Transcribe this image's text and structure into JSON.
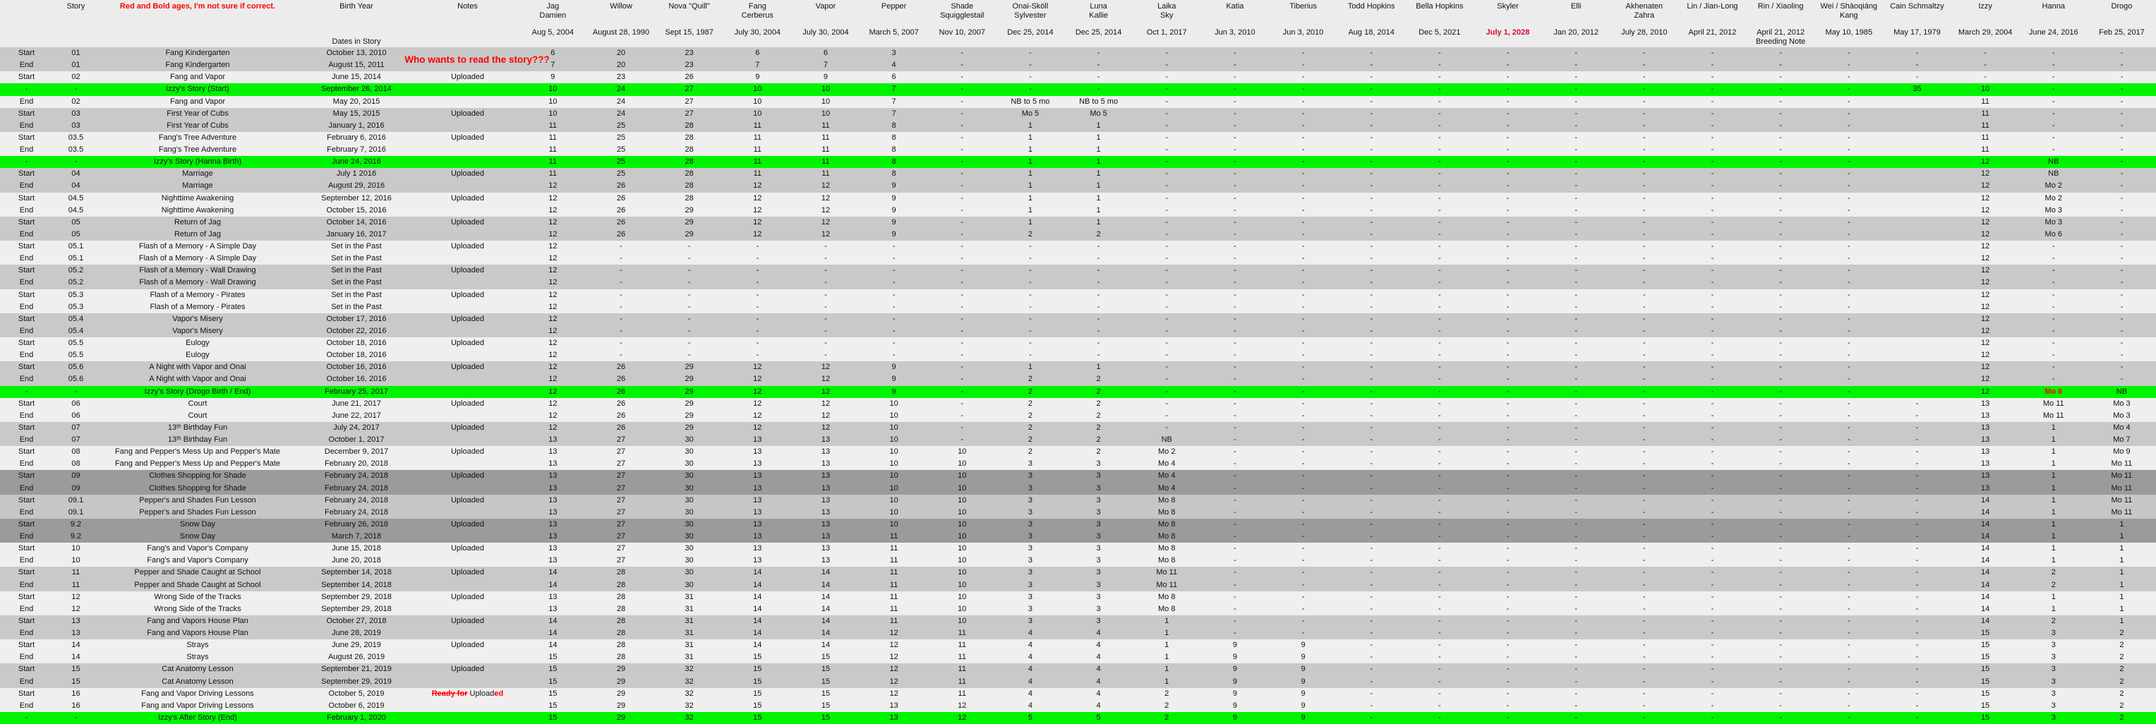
{
  "colors": {
    "green_highlight": "#00f400",
    "gray_row": "#c9c9c9",
    "dark_row": "#9b9b9b",
    "mid_row": "#c6c6c6",
    "white_row": "#efefef",
    "background": "#ececec",
    "red_text": "#ff0000",
    "skyler_red": "#d40b2c"
  },
  "header": {
    "story_label": "Story",
    "red_note": "Red and Bold ages, I'm not sure if correct.",
    "birth_year_label": "Birth Year",
    "dates_in_story_label": "Dates in Story",
    "notes_label": "Notes",
    "characters": [
      {
        "name": "Jag\nDamien",
        "birth": "Aug 5, 2004"
      },
      {
        "name": "Willow",
        "birth": "August 28, 1990"
      },
      {
        "name": "Nova \"Quill\"",
        "birth": "Sept 15, 1987"
      },
      {
        "name": "Fang\nCerberus",
        "birth": "July 30, 2004"
      },
      {
        "name": "Vapor",
        "birth": "July 30, 2004"
      },
      {
        "name": "Pepper",
        "birth": "March 5, 2007"
      },
      {
        "name": "Shade\nSquigglestail",
        "birth": "Nov 10, 2007"
      },
      {
        "name": "Onai-Sköll\nSylvester",
        "birth": "Dec 25, 2014"
      },
      {
        "name": "Luna\nKallie",
        "birth": "Dec 25, 2014"
      },
      {
        "name": "Laika\nSky",
        "birth": "Oct 1, 2017"
      },
      {
        "name": "Katia",
        "birth": "Jun 3, 2010"
      },
      {
        "name": "Tiberius",
        "birth": "Jun 3, 2010"
      },
      {
        "name": "Todd Hopkins",
        "birth": "Aug 18, 2014"
      },
      {
        "name": "Bella Hopkins",
        "birth": "Dec 5, 2021"
      },
      {
        "name": "Skyler",
        "birth": "July 1, 2028",
        "red": true
      },
      {
        "name": "Elli",
        "birth": "Jan 20, 2012"
      },
      {
        "name": "Akhenaten\nZahra",
        "birth": "July 28, 2010"
      },
      {
        "name": "Lin / Jian-Long",
        "birth": "April 21, 2012"
      },
      {
        "name": "Rin / Xiaoling",
        "birth": "April 21, 2012",
        "sub": "Breeding Note"
      },
      {
        "name": "Wei / Shàoqiáng\nKang",
        "birth": "May 10, 1985"
      },
      {
        "name": "Cain Schmaltzy",
        "birth": "May 17, 1979"
      },
      {
        "name": "Izzy",
        "birth": "March 29, 2004"
      },
      {
        "name": "Hanna",
        "birth": "June 24, 2016"
      },
      {
        "name": "Drogo",
        "birth": "Feb 25, 2017"
      }
    ]
  },
  "overlay": {
    "who_wants": "Who wants to read the story???"
  },
  "upload_note_parts": [
    {
      "text": "Ready for",
      "style": "strike-red"
    },
    {
      "text": " ",
      "style": ""
    },
    {
      "text": "Upload",
      "style": ""
    },
    {
      "text": "ed",
      "style": "note-red"
    }
  ],
  "rows": [
    {
      "p": "Start",
      "s": "01",
      "t": "Fang Kindergarten",
      "d": "October 13, 2010",
      "n": "",
      "h": "g",
      "a": "6|20|23|6|6|3|-|-|-|-|-|-|-|-|-|-|-|-|-|-|-|-|-|-"
    },
    {
      "p": "End",
      "s": "01",
      "t": "Fang Kindergarten",
      "d": "August 15, 2011",
      "n": "",
      "h": "g",
      "a": "7|20|23|7|7|4|-|-|-|-|-|-|-|-|-|-|-|-|-|-|-|-|-|-"
    },
    {
      "p": "Start",
      "s": "02",
      "t": "Fang and Vapor",
      "d": "June 15, 2014",
      "n": "Uploaded",
      "h": "w",
      "a": "9|23|26|9|9|6|-|-|-|-|-|-|-|-|-|-|-|-|-|-|-|-|-|-"
    },
    {
      "p": "-",
      "s": "-",
      "t": "Izzy's Story (Start)",
      "d": "September 26, 2014",
      "n": "",
      "h": "green",
      "a": "10|24|27|10|10|7|-|-|-|-|-|-|-|-|-|-|-|-|-|-|35|10|-|-"
    },
    {
      "p": "End",
      "s": "02",
      "t": "Fang and Vapor",
      "d": "May 20, 2015",
      "n": "",
      "h": "w",
      "a": "10|24|27|10|10|7|-|NB to 5 mo|NB to 5 mo|-|-|-|-|-|-|-|-|-|-|-||11|-|-"
    },
    {
      "p": "Start",
      "s": "03",
      "t": "First Year of Cubs",
      "d": "May 15, 2015",
      "n": "Uploaded",
      "h": "g",
      "a": "10|24|27|10|10|7|-|Mo 5|Mo 5|-|-|-|-|-|-|-|-|-|-|-||11|-|-"
    },
    {
      "p": "End",
      "s": "03",
      "t": "First Year of Cubs",
      "d": "January 1, 2016",
      "n": "",
      "h": "g",
      "a": "11|25|28|11|11|8|-|1|1|-|-|-|-|-|-|-|-|-|-|-||11|-|-"
    },
    {
      "p": "Start",
      "s": "03.5",
      "t": "Fang's Tree Adventure",
      "d": "February 6, 2016",
      "n": "Uploaded",
      "h": "w",
      "a": "11|25|28|11|11|8|-|1|1|-|-|-|-|-|-|-|-|-|-|-||11|-|-"
    },
    {
      "p": "End",
      "s": "03.5",
      "t": "Fang's Tree Adventure",
      "d": "February 7, 2016",
      "n": "",
      "h": "w",
      "a": "11|25|28|11|11|8|-|1|1|-|-|-|-|-|-|-|-|-|-|-||11|-|-"
    },
    {
      "p": "-",
      "s": "-",
      "t": "Izzy's Story (Hanna Birth)",
      "d": "June 24, 2016",
      "n": "",
      "h": "green",
      "a": "11|25|28|11|11|8|-|1|1|-|-|-|-|-|-|-|-|-|-|-||12|NB|-"
    },
    {
      "p": "Start",
      "s": "04",
      "t": "Marriage",
      "d": "July 1 2016",
      "n": "Uploaded",
      "h": "g",
      "a": "11|25|28|11|11|8|-|1|1|-|-|-|-|-|-|-|-|-|-|-||12|NB|-"
    },
    {
      "p": "End",
      "s": "04",
      "t": "Marriage",
      "d": "August 29, 2016",
      "n": "",
      "h": "g",
      "a": "12|26|28|12|12|9|-|1|1|-|-|-|-|-|-|-|-|-|-|-||12|Mo 2|-"
    },
    {
      "p": "Start",
      "s": "04.5",
      "t": "Nighttime Awakening",
      "d": "September 12, 2016",
      "n": "Uploaded",
      "h": "w",
      "a": "12|26|28|12|12|9|-|1|1|-|-|-|-|-|-|-|-|-|-|-||12|Mo 2|-"
    },
    {
      "p": "End",
      "s": "04.5",
      "t": "Nighttime Awakening",
      "d": "October 15, 2016",
      "n": "",
      "h": "w",
      "a": "12|26|29|12|12|9|-|1|1|-|-|-|-|-|-|-|-|-|-|-||12|Mo 3|-"
    },
    {
      "p": "Start",
      "s": "05",
      "t": "Return of Jag",
      "d": "October 14, 2016",
      "n": "Uploaded",
      "h": "g",
      "a": "12|26|29|12|12|9|-|1|1|-|-|-|-|-|-|-|-|-|-|-||12|Mo 3|-"
    },
    {
      "p": "End",
      "s": "05",
      "t": "Return of Jag",
      "d": "January 16, 2017",
      "n": "",
      "h": "g",
      "a": "12|26|29|12|12|9|-|2|2|-|-|-|-|-|-|-|-|-|-|-||12|Mo 6|-"
    },
    {
      "p": "Start",
      "s": "05.1",
      "t": "Flash of a Memory - A Simple Day",
      "d": "Set in the Past",
      "n": "Uploaded",
      "h": "w",
      "a": "12|-|-|-|-|-|-|-|-|-|-|-|-|-|-|-|-|-|-|-||12|-|-"
    },
    {
      "p": "End",
      "s": "05.1",
      "t": "Flash of a Memory - A Simple Day",
      "d": "Set in the Past",
      "n": "",
      "h": "w",
      "a": "12|-|-|-|-|-|-|-|-|-|-|-|-|-|-|-|-|-|-|-||12|-|-"
    },
    {
      "p": "Start",
      "s": "05.2",
      "t": "Flash of a Memory - Wall Drawing",
      "d": "Set in the Past",
      "n": "Uploaded",
      "h": "g",
      "a": "12|-|-|-|-|-|-|-|-|-|-|-|-|-|-|-|-|-|-|-||12|-|-"
    },
    {
      "p": "End",
      "s": "05.2",
      "t": "Flash of a Memory - Wall Drawing",
      "d": "Set in the Past",
      "n": "",
      "h": "g",
      "a": "12|-|-|-|-|-|-|-|-|-|-|-|-|-|-|-|-|-|-|-||12|-|-"
    },
    {
      "p": "Start",
      "s": "05.3",
      "t": "Flash of a Memory - Pirates",
      "d": "Set in the Past",
      "n": "Uploaded",
      "h": "w",
      "a": "12|-|-|-|-|-|-|-|-|-|-|-|-|-|-|-|-|-|-|-||12|-|-"
    },
    {
      "p": "End",
      "s": "05.3",
      "t": "Flash of a Memory - Pirates",
      "d": "Set in the Past",
      "n": "",
      "h": "w",
      "a": "12|-|-|-|-|-|-|-|-|-|-|-|-|-|-|-|-|-|-|-||12|-|-"
    },
    {
      "p": "Start",
      "s": "05.4",
      "t": "Vapor's Misery",
      "d": "October 17, 2016",
      "n": "Uploaded",
      "h": "g",
      "a": "12|-|-|-|-|-|-|-|-|-|-|-|-|-|-|-|-|-|-|-||12|-|-"
    },
    {
      "p": "End",
      "s": "05.4",
      "t": "Vapor's Misery",
      "d": "October 22, 2016",
      "n": "",
      "h": "g",
      "a": "12|-|-|-|-|-|-|-|-|-|-|-|-|-|-|-|-|-|-|-||12|-|-"
    },
    {
      "p": "Start",
      "s": "05.5",
      "t": "Eulogy",
      "d": "October 18, 2016",
      "n": "Uploaded",
      "h": "w",
      "a": "12|-|-|-|-|-|-|-|-|-|-|-|-|-|-|-|-|-|-|-||12|-|-"
    },
    {
      "p": "End",
      "s": "05.5",
      "t": "Eulogy",
      "d": "October 18, 2016",
      "n": "",
      "h": "w",
      "a": "12|-|-|-|-|-|-|-|-|-|-|-|-|-|-|-|-|-|-|-||12|-|-"
    },
    {
      "p": "Start",
      "s": "05.6",
      "t": "A Night with Vapor and Onai",
      "d": "October 16, 2016",
      "n": "Uploaded",
      "h": "g",
      "a": "12|26|29|12|12|9|-|1|1|-|-|-|-|-|-|-|-|-|-|-||12|-|-"
    },
    {
      "p": "End",
      "s": "05.6",
      "t": "A Night with Vapor and Onai",
      "d": "October 16, 2016",
      "n": "",
      "h": "g",
      "a": "12|26|29|12|12|9|-|2|2|-|-|-|-|-|-|-|-|-|-|-||12|-|-"
    },
    {
      "p": "-",
      "s": "-",
      "t": "Izzy's Story (Drogo Birth / End)",
      "d": "February 25, 2017",
      "n": "",
      "h": "green",
      "a": "12|26|29|12|12|9|-|2|2|-|-|-|-|-|-|-|-|-|-|-||12|Mo 6|NB",
      "red_cells": [
        22
      ]
    },
    {
      "p": "Start",
      "s": "06",
      "t": "Court",
      "d": "June 21, 2017",
      "n": "Uploaded",
      "h": "w",
      "a": "12|26|29|12|12|10|-|2|2|-|-|-|-|-|-|-|-|-|-|-|-|13|Mo 11|Mo 3"
    },
    {
      "p": "End",
      "s": "06",
      "t": "Court",
      "d": "June 22, 2017",
      "n": "",
      "h": "w",
      "a": "12|26|29|12|12|10|-|2|2|-|-|-|-|-|-|-|-|-|-|-|-|13|Mo 11|Mo 3"
    },
    {
      "p": "Start",
      "s": "07",
      "t": "13ᵗʰ Birthday Fun",
      "d": "July 24, 2017",
      "n": "Uploaded",
      "h": "g",
      "a": "12|26|29|12|12|10|-|2|2|-|-|-|-|-|-|-|-|-|-|-|-|13|1|Mo 4"
    },
    {
      "p": "End",
      "s": "07",
      "t": "13ᵗʰ Birthday Fun",
      "d": "October 1, 2017",
      "n": "",
      "h": "g",
      "a": "13|27|30|13|13|10|-|2|2|NB|-|-|-|-|-|-|-|-|-|-|-|13|1|Mo 7"
    },
    {
      "p": "Start",
      "s": "08",
      "t": "Fang and Pepper's Mess Up and Pepper's Mate",
      "d": "December 9, 2017",
      "n": "Uploaded",
      "h": "w",
      "a": "13|27|30|13|13|10|10|2|2|Mo 2|-|-|-|-|-|-|-|-|-|-|-|13|1|Mo 9"
    },
    {
      "p": "End",
      "s": "08",
      "t": "Fang and Pepper's Mess Up and Pepper's Mate",
      "d": "February 20, 2018",
      "n": "",
      "h": "w",
      "a": "13|27|30|13|13|10|10|3|3|Mo 4|-|-|-|-|-|-|-|-|-|-|-|13|1|Mo 11"
    },
    {
      "p": "Start",
      "s": "09",
      "t": "Clothes Shopping for Shade",
      "d": "February 24, 2018",
      "n": "Uploaded",
      "h": "dark",
      "a": "13|27|30|13|13|10|10|3|3|Mo 4|-|-|-|-|-|-|-|-|-|-|-|13|1|Mo 11"
    },
    {
      "p": "End",
      "s": "09",
      "t": "Clothes Shopping for Shade",
      "d": "February 24, 2018",
      "n": "",
      "h": "dark",
      "a": "13|27|30|13|13|10|10|3|3|Mo 4|-|-|-|-|-|-|-|-|-|-|-|13|1|Mo 11"
    },
    {
      "p": "Start",
      "s": "09.1",
      "t": "Pepper's and Shades Fun Lesson",
      "d": "February 24, 2018",
      "n": "Uploaded",
      "h": "mid",
      "a": "13|27|30|13|13|10|10|3|3|Mo 8|-|-|-|-|-|-|-|-|-|-|-|14|1|Mo 11"
    },
    {
      "p": "End",
      "s": "09.1",
      "t": "Pepper's and Shades Fun Lesson",
      "d": "February 24, 2018",
      "n": "",
      "h": "mid",
      "a": "13|27|30|13|13|10|10|3|3|Mo 8|-|-|-|-|-|-|-|-|-|-|-|14|1|Mo 11"
    },
    {
      "p": "Start",
      "s": "9.2",
      "t": "Snow Day",
      "d": "February 26, 2018",
      "n": "Uploaded",
      "h": "dark",
      "a": "13|27|30|13|13|10|10|3|3|Mo 8|-|-|-|-|-|-|-|-|-|-|-|14|1|1"
    },
    {
      "p": "End",
      "s": "9.2",
      "t": "Snow Day",
      "d": "March 7, 2018",
      "n": "",
      "h": "dark",
      "a": "13|27|30|13|13|11|10|3|3|Mo 8|-|-|-|-|-|-|-|-|-|-|-|14|1|1"
    },
    {
      "p": "Start",
      "s": "10",
      "t": "Fang's and Vapor's Company",
      "d": "June 15, 2018",
      "n": "Uploaded",
      "h": "w",
      "a": "13|27|30|13|13|11|10|3|3|Mo 8|-|-|-|-|-|-|-|-|-|-|-|14|1|1"
    },
    {
      "p": "End",
      "s": "10",
      "t": "Fang's and Vapor's Company",
      "d": "June 20, 2018",
      "n": "",
      "h": "w",
      "a": "13|27|30|13|13|11|10|3|3|Mo 8|-|-|-|-|-|-|-|-|-|-|-|14|1|1"
    },
    {
      "p": "Start",
      "s": "11",
      "t": "Pepper and Shade Caught at School",
      "d": "September 14, 2018",
      "n": "Uploaded",
      "h": "g",
      "a": "14|28|30|14|14|11|10|3|3|Mo 11|-|-|-|-|-|-|-|-|-|-|-|14|2|1"
    },
    {
      "p": "End",
      "s": "11",
      "t": "Pepper and Shade Caught at School",
      "d": "September 14, 2018",
      "n": "",
      "h": "g",
      "a": "14|28|30|14|14|11|10|3|3|Mo 11|-|-|-|-|-|-|-|-|-|-|-|14|2|1"
    },
    {
      "p": "Start",
      "s": "12",
      "t": "Wrong Side of the Tracks",
      "d": "September 29, 2018",
      "n": "Uploaded",
      "h": "w",
      "a": "13|28|31|14|14|11|10|3|3|Mo 8|-|-|-|-|-|-|-|-|-|-|-|14|1|1"
    },
    {
      "p": "End",
      "s": "12",
      "t": "Wrong Side of the Tracks",
      "d": "September 29, 2018",
      "n": "",
      "h": "w",
      "a": "13|28|31|14|14|11|10|3|3|Mo 8|-|-|-|-|-|-|-|-|-|-|-|14|1|1"
    },
    {
      "p": "Start",
      "s": "13",
      "t": "Fang and Vapors House Plan",
      "d": "October 27, 2018",
      "n": "Uploaded",
      "h": "g",
      "a": "14|28|31|14|14|11|10|3|3|1|-|-|-|-|-|-|-|-|-|-|-|14|2|1"
    },
    {
      "p": "End",
      "s": "13",
      "t": "Fang and Vapors House Plan",
      "d": "June 28, 2019",
      "n": "",
      "h": "g",
      "a": "14|28|31|14|14|12|11|4|4|1|-|-|-|-|-|-|-|-|-|-|-|15|3|2"
    },
    {
      "p": "Start",
      "s": "14",
      "t": "Strays",
      "d": "June 29, 2019",
      "n": "Uploaded",
      "h": "w",
      "a": "14|28|31|14|14|12|11|4|4|1|9|9|-|-|-|-|-|-|-|-|-|15|3|2"
    },
    {
      "p": "End",
      "s": "14",
      "t": "Strays",
      "d": "August 26, 2019",
      "n": "",
      "h": "w",
      "a": "15|28|31|15|15|12|11|4|4|1|9|9|-|-|-|-|-|-|-|-|-|15|3|2"
    },
    {
      "p": "Start",
      "s": "15",
      "t": "Cat Anatomy Lesson",
      "d": "September 21, 2019",
      "n": "Uploaded",
      "h": "g",
      "a": "15|29|32|15|15|12|11|4|4|1|9|9|-|-|-|-|-|-|-|-|-|15|3|2"
    },
    {
      "p": "End",
      "s": "15",
      "t": "Cat Anatomy Lesson",
      "d": "September 29, 2019",
      "n": "",
      "h": "g",
      "a": "15|29|32|15|15|12|11|4|4|1|9|9|-|-|-|-|-|-|-|-|-|15|3|2"
    },
    {
      "p": "Start",
      "s": "16",
      "t": "Fang and Vapor Driving Lessons",
      "d": "October 5, 2019",
      "n": "READY_UPLOAD",
      "h": "w",
      "a": "15|29|32|15|15|12|11|4|4|2|9|9|-|-|-|-|-|-|-|-|-|15|3|2"
    },
    {
      "p": "End",
      "s": "16",
      "t": "Fang and Vapor Driving Lessons",
      "d": "October 6, 2019",
      "n": "",
      "h": "w",
      "a": "15|29|32|15|15|13|12|4|4|2|9|9|-|-|-|-|-|-|-|-|-|15|3|2"
    },
    {
      "p": "-",
      "s": "-",
      "t": "Izzy's After Story (End)",
      "d": "February 1, 2020",
      "n": "",
      "h": "green",
      "a": "15|29|32|15|15|13|12|5|5|2|9|9|-|-|-|-|-|-|-|-|-|15|3|2"
    }
  ]
}
